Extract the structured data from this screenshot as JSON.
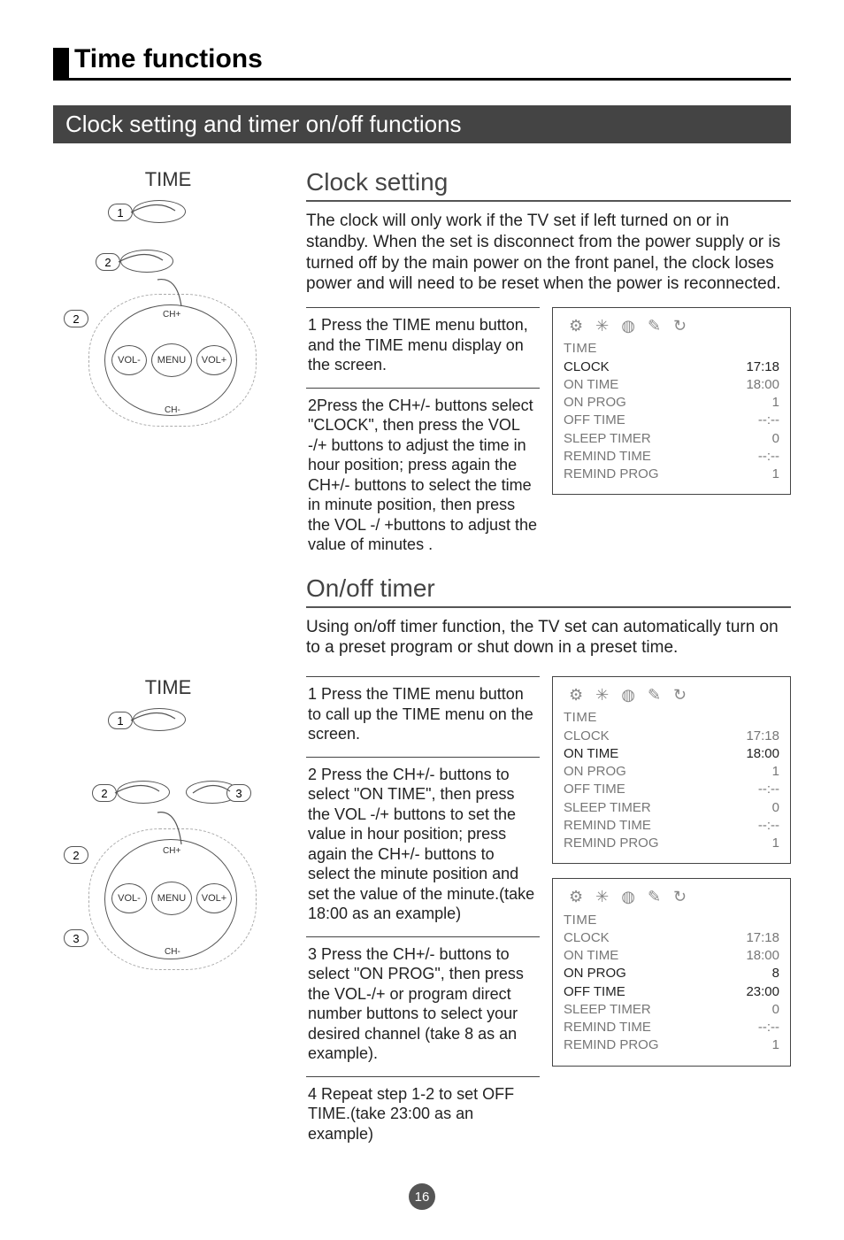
{
  "page": {
    "main_heading": "Time functions",
    "section_bar": "Clock setting  and timer on/off functions",
    "page_number": "16"
  },
  "clock_section": {
    "heading": "Clock setting",
    "intro": "The clock will only work if the TV set if left turned on or in standby. When the set is disconnect from the power supply or is turned off by the main power on the front panel, the clock loses power and will need to be reset when the power is reconnected.",
    "steps": [
      "1 Press the  TIME menu  button, and the TIME menu display on the screen.",
      "2Press the CH+/- buttons select \"CLOCK\", then press the VOL -/+ buttons to adjust the  time in hour position; press again the CH+/-  buttons to select the time in minute position, then press the VOL -/ +buttons to adjust the value of minutes ."
    ],
    "menu": {
      "title": "TIME",
      "rows": [
        {
          "label": "CLOCK",
          "value": "17:18",
          "hl": true
        },
        {
          "label": "ON TIME",
          "value": "18:00"
        },
        {
          "label": "ON PROG",
          "value": "1"
        },
        {
          "label": "OFF TIME",
          "value": "--:--"
        },
        {
          "label": "SLEEP TIMER",
          "value": "0"
        },
        {
          "label": "REMIND TIME",
          "value": "--:--"
        },
        {
          "label": "REMIND PROG",
          "value": "1"
        }
      ]
    }
  },
  "timer_section": {
    "heading": "On/off timer",
    "intro": "Using on/off timer function, the TV set can automatically turn on to a preset program or shut down in a preset time.",
    "steps": [
      "1 Press the TIME menu  button to call up the TIME menu on the screen.",
      "2 Press the CH+/- buttons to select  \"ON TIME\", then press the VOL -/+ buttons to set the value in hour position; press again the CH+/- buttons to select the minute position and set the value of the minute.(take 18:00 as an example)",
      "3 Press the CH+/- buttons to select  \"ON PROG\", then press the VOL-/+ or program direct number buttons to select your desired channel (take 8 as an example).",
      "4 Repeat step 1-2 to set OFF TIME.(take 23:00 as an example)"
    ],
    "menu1": {
      "title": "TIME",
      "rows": [
        {
          "label": "CLOCK",
          "value": "17:18"
        },
        {
          "label": "ON TIME",
          "value": "18:00",
          "hl": true
        },
        {
          "label": "ON PROG",
          "value": "1"
        },
        {
          "label": "OFF TIME",
          "value": "--:--"
        },
        {
          "label": "SLEEP TIMER",
          "value": "0"
        },
        {
          "label": "REMIND TIME",
          "value": "--:--"
        },
        {
          "label": "REMIND PROG",
          "value": "1"
        }
      ]
    },
    "menu2": {
      "title": "TIME",
      "rows": [
        {
          "label": "CLOCK",
          "value": "17:18"
        },
        {
          "label": "ON TIME",
          "value": "18:00"
        },
        {
          "label": "ON PROG",
          "value": "8",
          "hl": true
        },
        {
          "label": "OFF TIME",
          "value": "23:00",
          "hl": true
        },
        {
          "label": "SLEEP TIMER",
          "value": "0"
        },
        {
          "label": "REMIND TIME",
          "value": "--:--"
        },
        {
          "label": "REMIND PROG",
          "value": "1"
        }
      ]
    }
  },
  "remote": {
    "title": "TIME",
    "btn_menu": "MENU",
    "btn_vol_minus": "VOL-",
    "btn_vol_plus": "VOL+",
    "btn_ch_plus": "CH+",
    "btn_ch_minus": "CH-",
    "c1": "1",
    "c2": "2",
    "c3": "3"
  },
  "icons": {
    "i1": "⚙",
    "i2": "✳",
    "i3": "◍",
    "i4": "✎",
    "i5": "↻"
  },
  "colors": {
    "bar_bg": "#444444",
    "muted": "#777777",
    "highlight": "#222222",
    "divider": "#555555"
  },
  "fonts": {
    "heading_size_pt": 22,
    "subheading_size_pt": 21,
    "body_size_pt": 14,
    "step_size_pt": 13.5,
    "menu_size_pt": 11.5
  }
}
